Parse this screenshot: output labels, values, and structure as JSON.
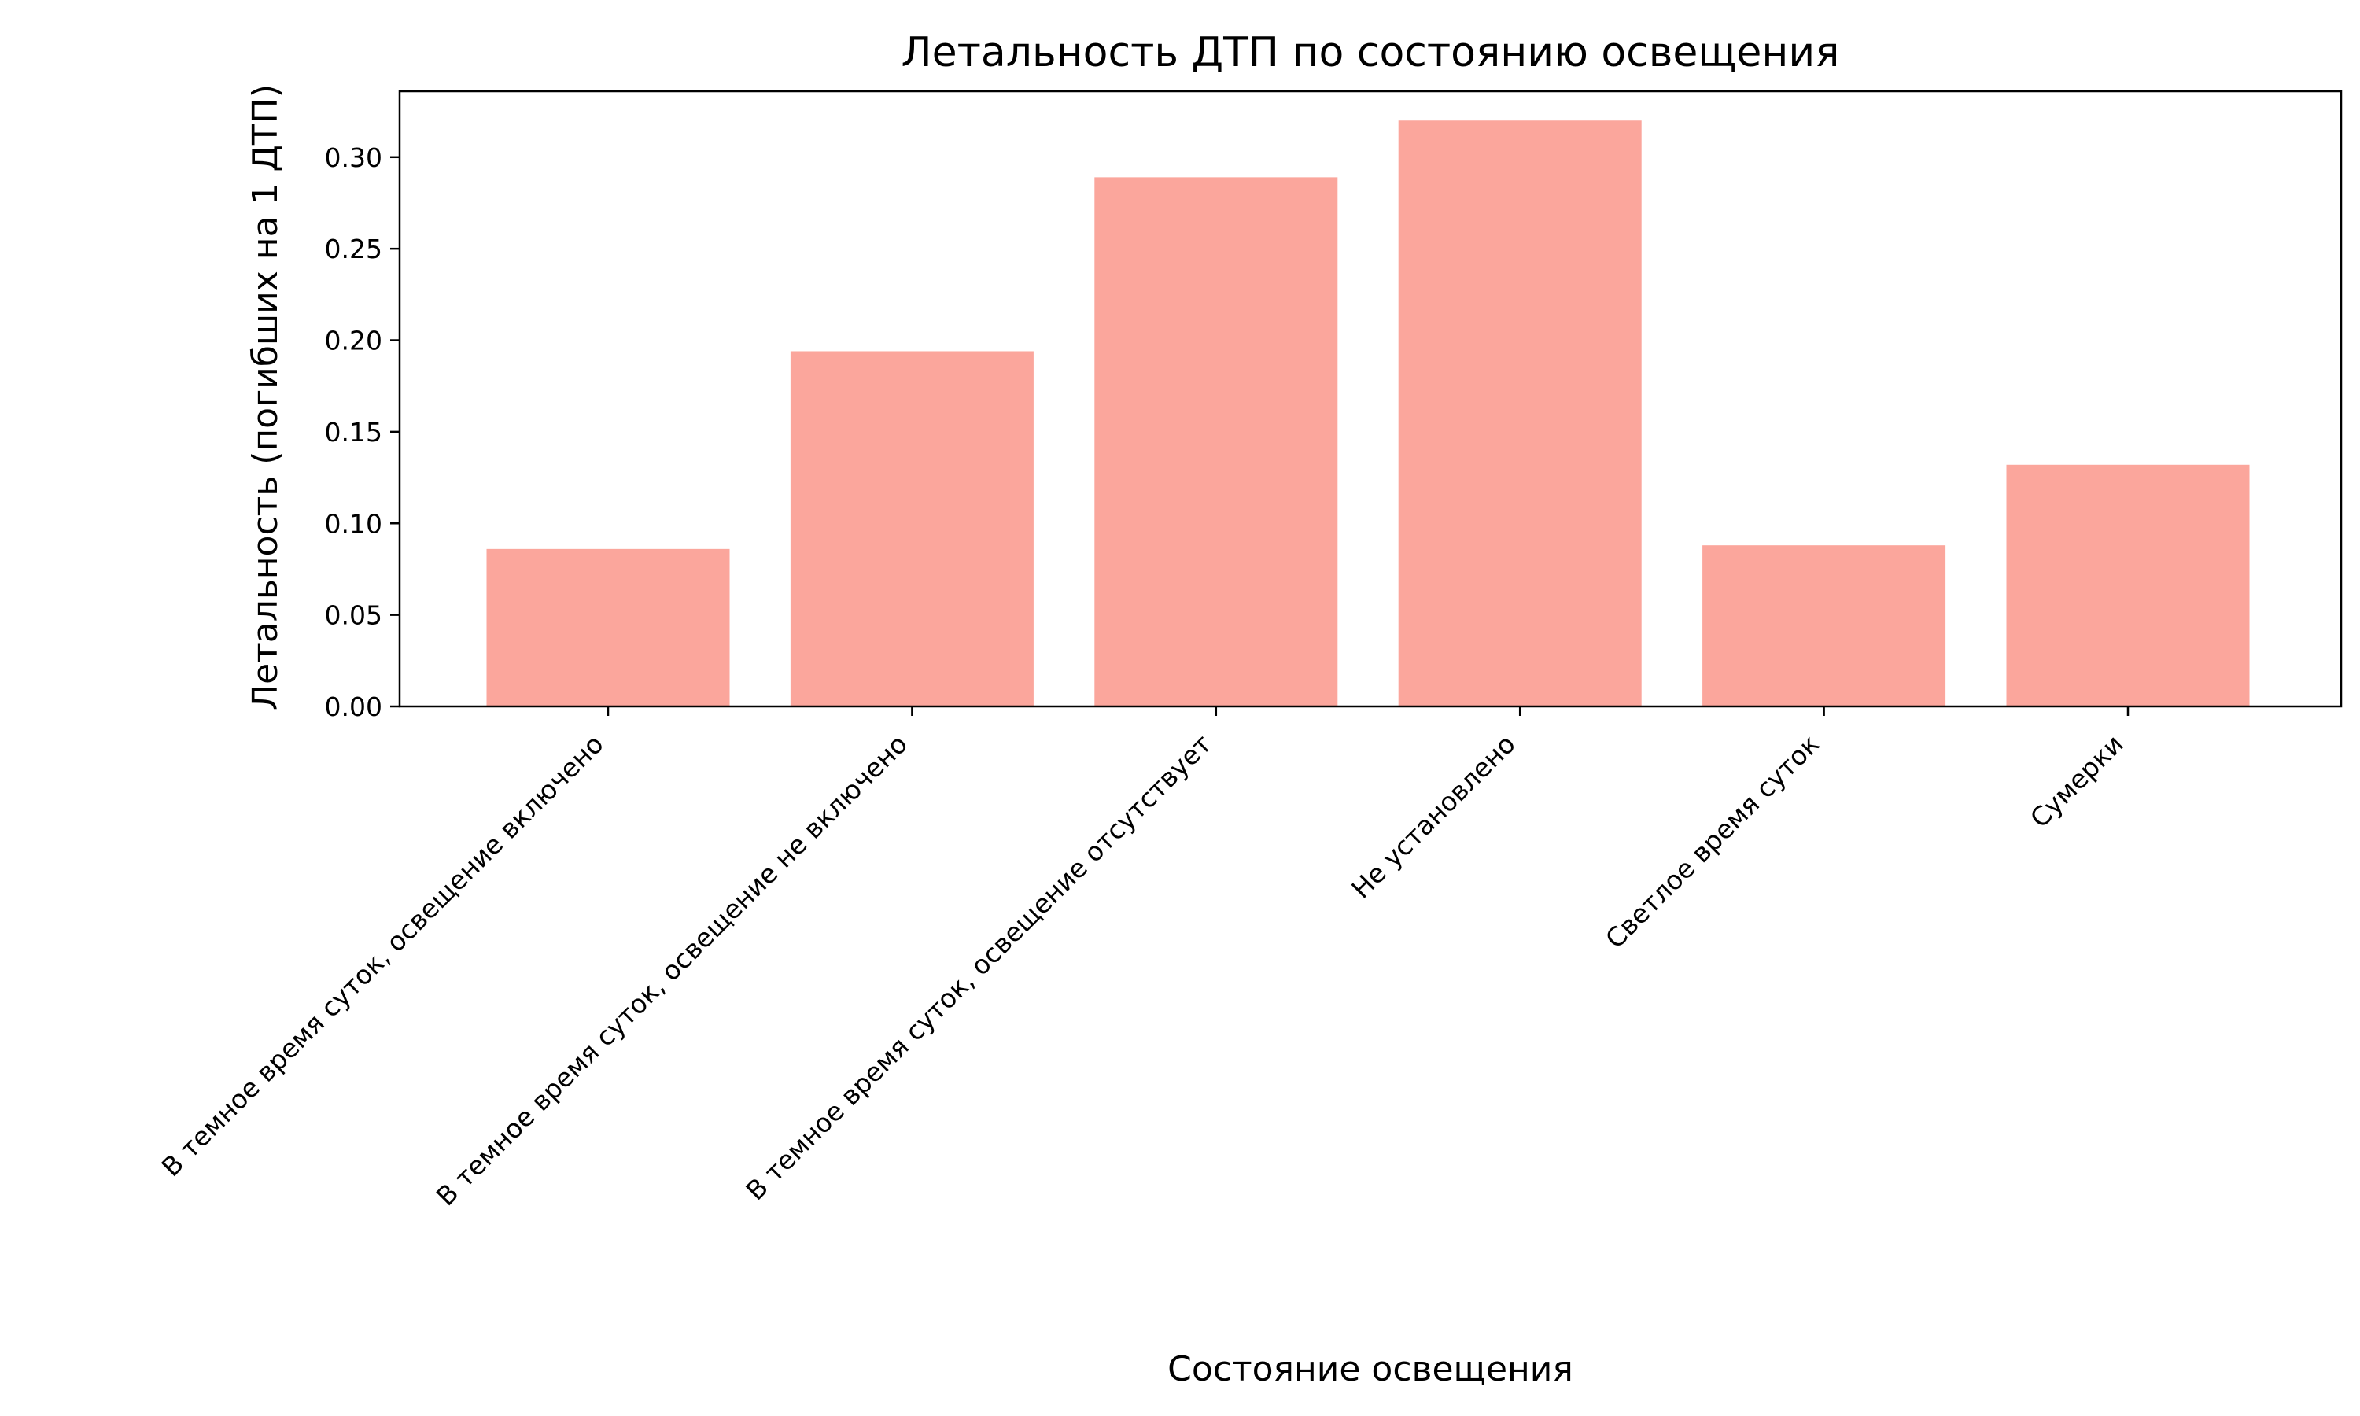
{
  "chart_data": {
    "type": "bar",
    "title": "Летальность ДТП по состоянию освещения",
    "xlabel": "Состояние освещения",
    "ylabel": "Летальность (погибших на 1 ДТП)",
    "categories": [
      "В темное время суток, освещение включено",
      "В темное время суток, освещение не включено",
      "В темное время суток, освещение отсутствует",
      "Не установлено",
      "Светлое время суток",
      "Сумерки"
    ],
    "values": [
      0.086,
      0.194,
      0.289,
      0.32,
      0.088,
      0.132
    ],
    "ylim": [
      0,
      0.336
    ],
    "yticks": [
      0.0,
      0.05,
      0.1,
      0.15,
      0.2,
      0.25,
      0.3
    ],
    "ytick_labels": [
      "0.00",
      "0.05",
      "0.10",
      "0.15",
      "0.20",
      "0.25",
      "0.30"
    ],
    "bar_color": "#FA8072",
    "bar_opacity": 0.7,
    "grid": false,
    "legend": "none"
  }
}
